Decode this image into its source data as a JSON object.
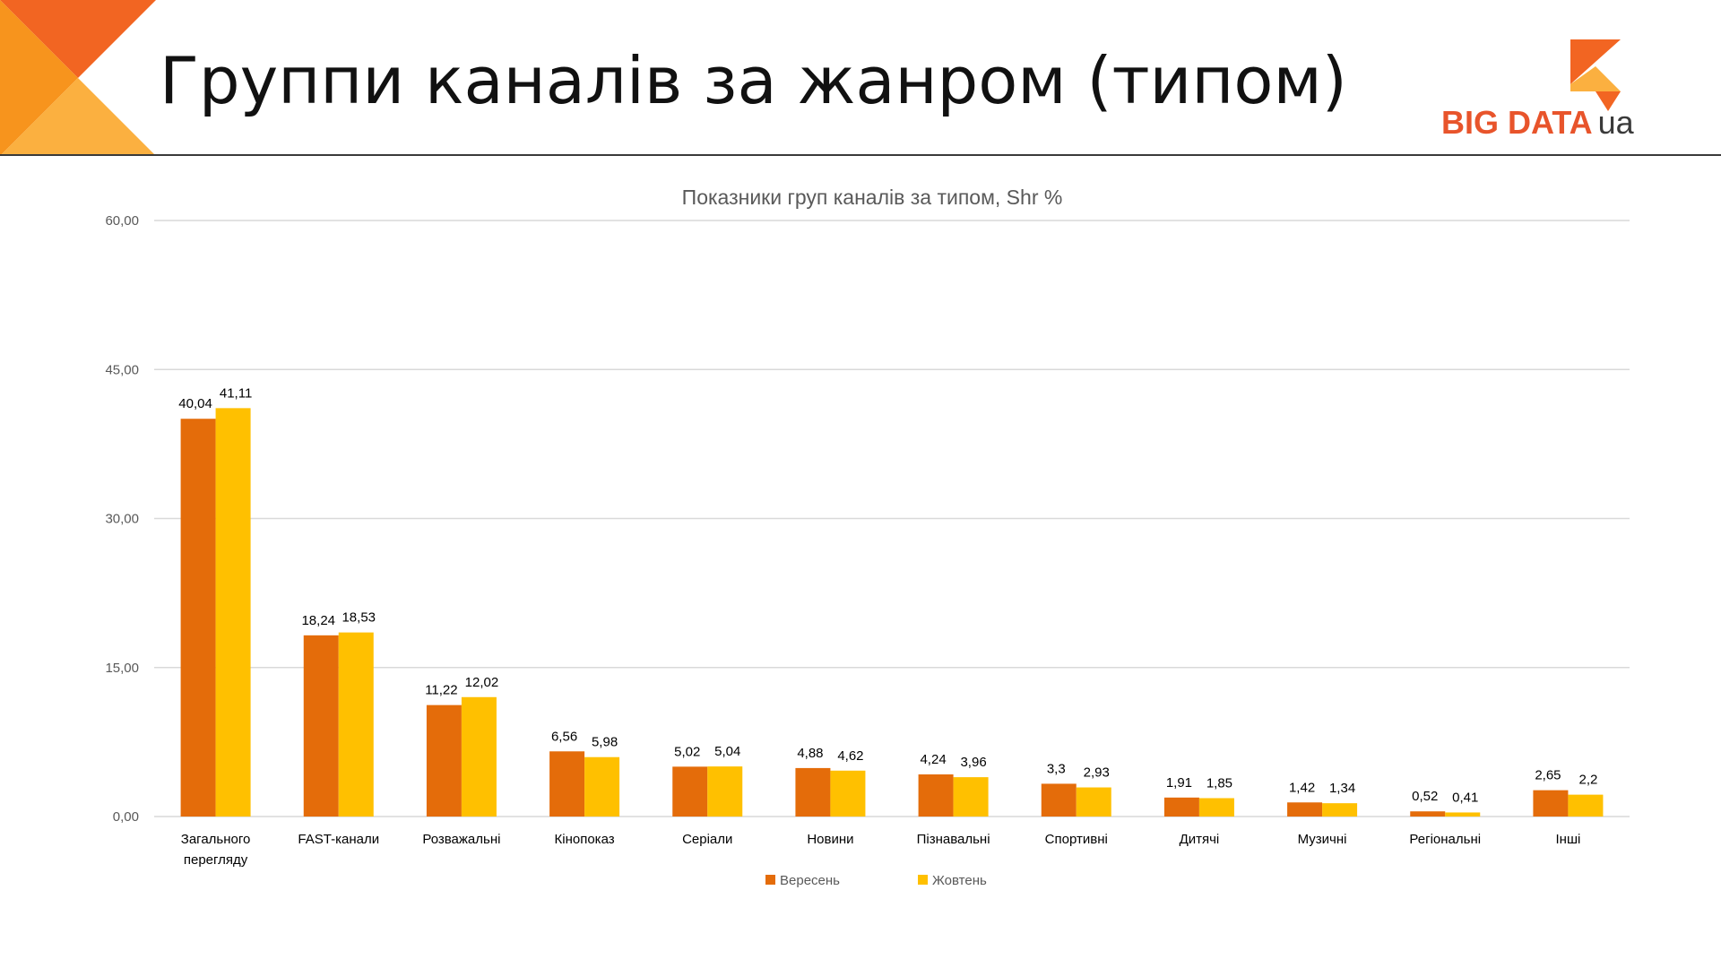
{
  "slide": {
    "title": "Группи каналів за жанром (типом)"
  },
  "logo": {
    "text": "BIG DATA",
    "suffix": "ua"
  },
  "colors": {
    "accent_orange": "#e46c0a",
    "accent_yellow": "#ffc000",
    "logo_red": "#e8542b",
    "corner_orange": "#f7941d"
  },
  "chart_data": {
    "type": "bar",
    "title": "Показники груп каналів за типом, Shr %",
    "categories": [
      "Загального перегляду",
      "FAST-канали",
      "Розважальні",
      "Кінопоказ",
      "Серіали",
      "Новини",
      "Пізнавальні",
      "Спортивні",
      "Дитячі",
      "Музичні",
      "Регіональні",
      "Інші"
    ],
    "category_lines": [
      [
        "Загального",
        "перегляду"
      ],
      [
        "FAST-канали"
      ],
      [
        "Розважальні"
      ],
      [
        "Кінопоказ"
      ],
      [
        "Серіали"
      ],
      [
        "Новини"
      ],
      [
        "Пізнавальні"
      ],
      [
        "Спортивні"
      ],
      [
        "Дитячі"
      ],
      [
        "Музичні"
      ],
      [
        "Регіональні"
      ],
      [
        "Інші"
      ]
    ],
    "series": [
      {
        "name": "Вересень",
        "color": "#e46c0a",
        "values": [
          40.04,
          18.24,
          11.22,
          6.56,
          5.02,
          4.88,
          4.24,
          3.3,
          1.91,
          1.42,
          0.52,
          2.65
        ],
        "labels": [
          "40,04",
          "18,24",
          "11,22",
          "6,56",
          "5,02",
          "4,88",
          "4,24",
          "3,3",
          "1,91",
          "1,42",
          "0,52",
          "2,65"
        ]
      },
      {
        "name": "Жовтень",
        "color": "#ffc000",
        "values": [
          41.11,
          18.53,
          12.02,
          5.98,
          5.04,
          4.62,
          3.96,
          2.93,
          1.85,
          1.34,
          0.41,
          2.2
        ],
        "labels": [
          "41,11",
          "18,53",
          "12,02",
          "5,98",
          "5,04",
          "4,62",
          "3,96",
          "2,93",
          "1,85",
          "1,34",
          "0,41",
          "2,2"
        ]
      }
    ],
    "ylim": [
      0,
      60
    ],
    "yticks": [
      0,
      15,
      30,
      45,
      60
    ],
    "ytick_labels": [
      "0,00",
      "15,00",
      "30,00",
      "45,00",
      "60,00"
    ],
    "grid": true,
    "legend_position": "bottom"
  }
}
